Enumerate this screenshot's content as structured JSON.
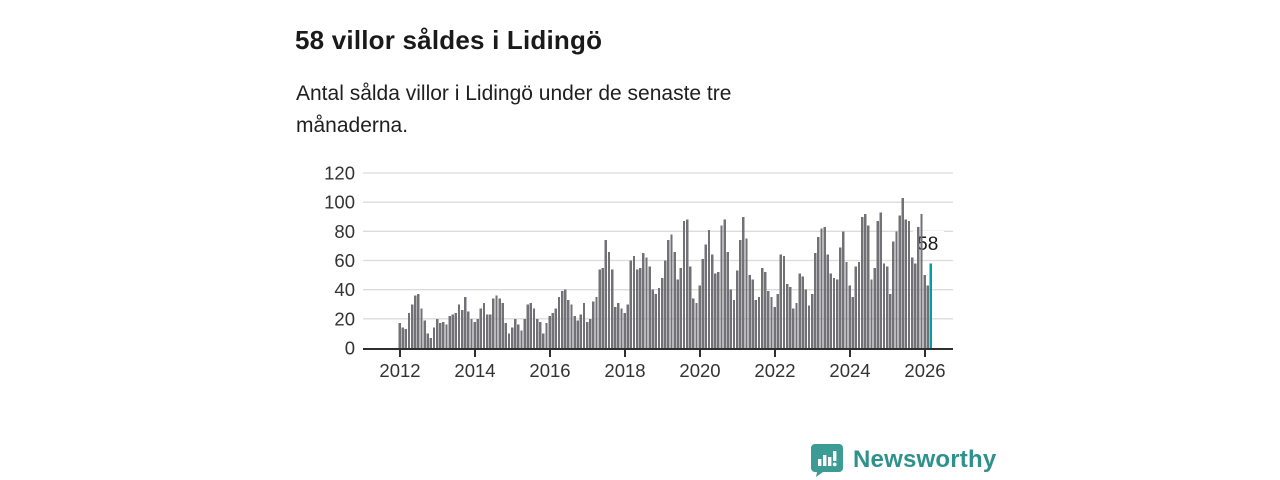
{
  "header": {
    "title": "58 villor såldes i Lidingö",
    "subtitle_lines": [
      "Antal sålda villor i Lidingö under de senaste tre",
      "månaderna."
    ]
  },
  "chart_data": {
    "type": "bar",
    "title": "58 villor såldes i Lidingö",
    "xlabel": "",
    "ylabel": "",
    "frequency": "monthly",
    "x_start": "2012-01",
    "x_end": "2026-03",
    "ylim": [
      0,
      120
    ],
    "yticks": [
      0,
      20,
      40,
      60,
      80,
      100,
      120
    ],
    "xticks": [
      2012,
      2014,
      2016,
      2018,
      2020,
      2022,
      2024,
      2026
    ],
    "grid": true,
    "legend": false,
    "bar_color": "#717176",
    "highlight_color": "#009fa3",
    "highlight_index": 170,
    "annotation": {
      "text": "58",
      "value": 58
    },
    "values": [
      17,
      14,
      13,
      24,
      30,
      36,
      37,
      27,
      19,
      10,
      7,
      14,
      20,
      17,
      18,
      16,
      22,
      23,
      24,
      30,
      26,
      35,
      25,
      20,
      18,
      20,
      27,
      31,
      23,
      23,
      34,
      36,
      34,
      31,
      17,
      10,
      14,
      20,
      16,
      12,
      20,
      30,
      31,
      27,
      20,
      18,
      10,
      17,
      22,
      24,
      27,
      35,
      39,
      40,
      33,
      30,
      22,
      19,
      23,
      31,
      18,
      20,
      32,
      35,
      54,
      55,
      74,
      66,
      54,
      28,
      31,
      27,
      24,
      30,
      60,
      63,
      54,
      55,
      65,
      62,
      56,
      40,
      37,
      41,
      48,
      60,
      74,
      78,
      66,
      47,
      55,
      87,
      88,
      56,
      34,
      31,
      43,
      61,
      71,
      81,
      64,
      51,
      52,
      84,
      88,
      66,
      40,
      33,
      53,
      74,
      90,
      75,
      50,
      47,
      33,
      35,
      55,
      52,
      39,
      35,
      28,
      37,
      64,
      63,
      44,
      42,
      27,
      31,
      51,
      49,
      40,
      29,
      37,
      65,
      76,
      82,
      83,
      64,
      51,
      48,
      47,
      69,
      80,
      59,
      43,
      35,
      56,
      59,
      90,
      92,
      84,
      47,
      55,
      87,
      93,
      58,
      56,
      37,
      73,
      80,
      91,
      103,
      88,
      87,
      62,
      58,
      83,
      92,
      50,
      43,
      58
    ]
  },
  "footer": {
    "brand": "Newsworthy",
    "brand_color": "#2f918c",
    "icon_color": "#3d9b95"
  }
}
